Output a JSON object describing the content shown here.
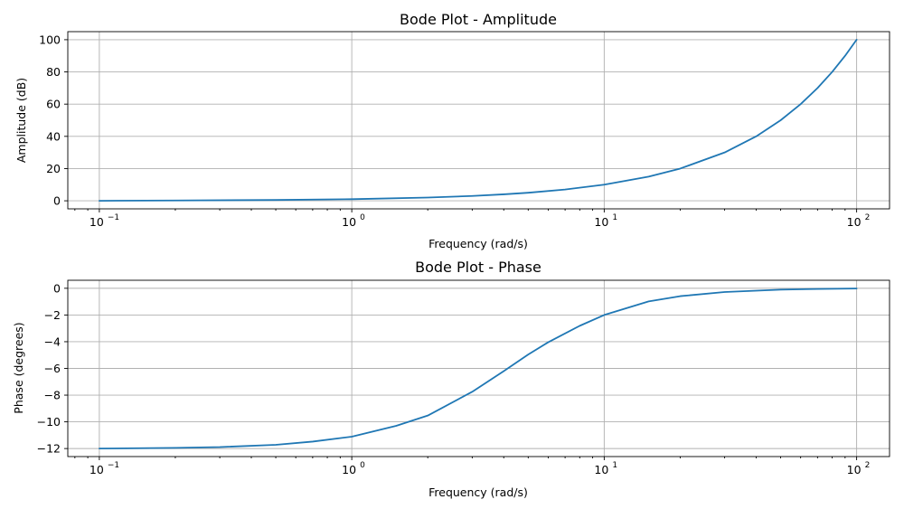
{
  "chart_data": [
    {
      "type": "line",
      "title": "Bode Plot - Amplitude",
      "xlabel": "Frequency (rad/s)",
      "ylabel": "Amplitude (dB)",
      "xscale": "log",
      "xlim": [
        0.075,
        135
      ],
      "ylim": [
        -5,
        105
      ],
      "xticks": [
        {
          "value": 0.1,
          "base": "10",
          "exp": "−1"
        },
        {
          "value": 1,
          "base": "10",
          "exp": "0"
        },
        {
          "value": 10,
          "base": "10",
          "exp": "1"
        },
        {
          "value": 100,
          "base": "10",
          "exp": "2"
        }
      ],
      "yticks": [
        0,
        20,
        40,
        60,
        80,
        100
      ],
      "grid": true,
      "color": "#1f77b4",
      "series": [
        {
          "x": [
            0.1,
            0.2,
            0.5,
            1,
            2,
            3,
            4,
            5,
            7,
            10,
            15,
            20,
            30,
            40,
            50,
            60,
            70,
            80,
            90,
            100
          ],
          "y": [
            0.0,
            0.2,
            0.5,
            1.0,
            2.0,
            3.0,
            4.0,
            5.0,
            7.0,
            10.0,
            15.0,
            20.0,
            30.0,
            40.0,
            50.0,
            60.0,
            70.0,
            80.0,
            90.0,
            100.0
          ]
        }
      ]
    },
    {
      "type": "line",
      "title": "Bode Plot - Phase",
      "xlabel": "Frequency (rad/s)",
      "ylabel": "Phase (degrees)",
      "xscale": "log",
      "xlim": [
        0.075,
        135
      ],
      "ylim": [
        -12.6,
        0.6
      ],
      "xticks": [
        {
          "value": 0.1,
          "base": "10",
          "exp": "−1"
        },
        {
          "value": 1,
          "base": "10",
          "exp": "0"
        },
        {
          "value": 10,
          "base": "10",
          "exp": "1"
        },
        {
          "value": 100,
          "base": "10",
          "exp": "2"
        }
      ],
      "yticks": [
        0,
        -2,
        -4,
        -6,
        -8,
        -10,
        -12
      ],
      "grid": true,
      "color": "#1f77b4",
      "series": [
        {
          "x": [
            0.1,
            0.2,
            0.3,
            0.5,
            0.7,
            1,
            1.5,
            2,
            3,
            4,
            5,
            6,
            8,
            10,
            15,
            20,
            30,
            50,
            70,
            100
          ],
          "y": [
            -12.0,
            -11.95,
            -11.89,
            -11.72,
            -11.48,
            -11.11,
            -10.3,
            -9.53,
            -7.75,
            -6.2,
            -4.96,
            -4.04,
            -2.81,
            -2.0,
            -0.98,
            -0.59,
            -0.28,
            -0.1,
            -0.05,
            -0.02
          ]
        }
      ]
    }
  ]
}
